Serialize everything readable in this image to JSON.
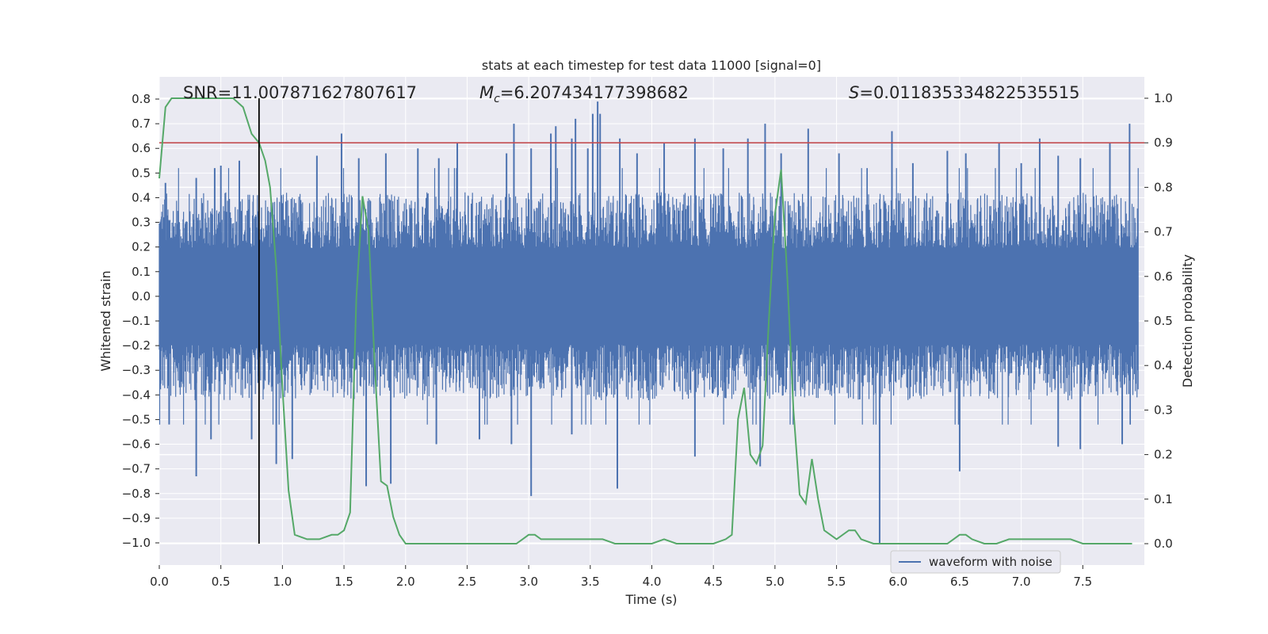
{
  "chart_data": {
    "type": "line",
    "title": "stats at each timestep for test data 11000 [signal=0]",
    "xlabel": "Time (s)",
    "ylabel": "Whitened strain",
    "y2label": "Detection probability",
    "xlim": [
      0.0,
      8.0
    ],
    "ylim": [
      -1.09,
      0.89
    ],
    "y2lim": [
      -0.048,
      1.048
    ],
    "xticks": [
      "0.0",
      "0.5",
      "1.0",
      "1.5",
      "2.0",
      "2.5",
      "3.0",
      "3.5",
      "4.0",
      "4.5",
      "5.0",
      "5.5",
      "6.0",
      "6.5",
      "7.0",
      "7.5"
    ],
    "xtick_values": [
      0.0,
      0.5,
      1.0,
      1.5,
      2.0,
      2.5,
      3.0,
      3.5,
      4.0,
      4.5,
      5.0,
      5.5,
      6.0,
      6.5,
      7.0,
      7.5
    ],
    "yticks": [
      "0.8",
      "0.7",
      "0.6",
      "0.5",
      "0.4",
      "0.3",
      "0.2",
      "0.1",
      "0.0",
      "−0.1",
      "−0.2",
      "−0.3",
      "−0.4",
      "−0.5",
      "−0.6",
      "−0.7",
      "−0.8",
      "−0.9",
      "−1.0"
    ],
    "ytick_values": [
      0.8,
      0.7,
      0.6,
      0.5,
      0.4,
      0.3,
      0.2,
      0.1,
      0.0,
      -0.1,
      -0.2,
      -0.3,
      -0.4,
      -0.5,
      -0.6,
      -0.7,
      -0.8,
      -0.9,
      -1.0
    ],
    "y2ticks": [
      "1.0",
      "0.9",
      "0.8",
      "0.7",
      "0.6",
      "0.5",
      "0.4",
      "0.3",
      "0.2",
      "0.1",
      "0.0"
    ],
    "y2tick_values": [
      1.0,
      0.9,
      0.8,
      0.7,
      0.6,
      0.5,
      0.4,
      0.3,
      0.2,
      0.1,
      0.0
    ],
    "annotations": {
      "snr": "SNR=11.007871627807617",
      "mc_symbol": "M",
      "mc_sub": "c",
      "mc_value": "=6.207434177398682",
      "s_symbol": "S",
      "s_value": "=0.011835334822535515"
    },
    "legend": {
      "label": "waveform with noise",
      "placement": "lower-right"
    },
    "grid": true,
    "threshold_line": {
      "y2": 0.9,
      "color": "#c44e52"
    },
    "vertical_line": {
      "x": 0.81,
      "color": "#000000"
    },
    "series": [
      {
        "name": "waveform with noise",
        "axis": "left",
        "color": "#4c72b0",
        "note_envelope": "dense noise; spikes listed as [x, peak]",
        "base_amplitude": 0.26,
        "spikes_up": [
          [
            0.05,
            0.46
          ],
          [
            0.3,
            0.48
          ],
          [
            0.45,
            0.52
          ],
          [
            0.5,
            0.53
          ],
          [
            0.65,
            0.55
          ],
          [
            1.28,
            0.57
          ],
          [
            1.48,
            0.66
          ],
          [
            1.62,
            0.56
          ],
          [
            1.84,
            0.58
          ],
          [
            2.1,
            0.6
          ],
          [
            2.27,
            0.56
          ],
          [
            2.42,
            0.62
          ],
          [
            2.82,
            0.58
          ],
          [
            2.88,
            0.7
          ],
          [
            3.02,
            0.6
          ],
          [
            3.18,
            0.66
          ],
          [
            3.22,
            0.69
          ],
          [
            3.35,
            0.64
          ],
          [
            3.38,
            0.72
          ],
          [
            3.48,
            0.6
          ],
          [
            3.52,
            0.74
          ],
          [
            3.56,
            0.79
          ],
          [
            3.58,
            0.74
          ],
          [
            3.74,
            0.64
          ],
          [
            3.88,
            0.58
          ],
          [
            4.1,
            0.62
          ],
          [
            4.35,
            0.64
          ],
          [
            4.58,
            0.6
          ],
          [
            4.78,
            0.64
          ],
          [
            4.92,
            0.7
          ],
          [
            5.05,
            0.58
          ],
          [
            5.27,
            0.68
          ],
          [
            5.52,
            0.58
          ],
          [
            5.95,
            0.67
          ],
          [
            6.12,
            0.54
          ],
          [
            6.4,
            0.59
          ],
          [
            6.55,
            0.58
          ],
          [
            6.82,
            0.62
          ],
          [
            7.0,
            0.54
          ],
          [
            7.15,
            0.64
          ],
          [
            7.3,
            0.57
          ],
          [
            7.48,
            0.56
          ],
          [
            7.72,
            0.62
          ],
          [
            7.88,
            0.7
          ]
        ],
        "spikes_down": [
          [
            0.08,
            -0.52
          ],
          [
            0.3,
            -0.73
          ],
          [
            0.42,
            -0.58
          ],
          [
            0.75,
            -0.58
          ],
          [
            0.95,
            -0.68
          ],
          [
            1.08,
            -0.66
          ],
          [
            1.68,
            -0.77
          ],
          [
            1.88,
            -0.76
          ],
          [
            2.25,
            -0.6
          ],
          [
            2.6,
            -0.58
          ],
          [
            2.86,
            -0.6
          ],
          [
            3.02,
            -0.81
          ],
          [
            3.35,
            -0.56
          ],
          [
            3.72,
            -0.78
          ],
          [
            4.35,
            -0.65
          ],
          [
            4.88,
            -0.69
          ],
          [
            5.85,
            -1.0
          ],
          [
            6.5,
            -0.71
          ],
          [
            7.3,
            -0.61
          ],
          [
            7.48,
            -0.62
          ],
          [
            7.82,
            -0.6
          ]
        ]
      },
      {
        "name": "detection probability",
        "axis": "right",
        "color": "#55a868",
        "x": [
          0.0,
          0.05,
          0.1,
          0.2,
          0.3,
          0.4,
          0.5,
          0.6,
          0.68,
          0.75,
          0.81,
          0.86,
          0.9,
          0.95,
          1.0,
          1.05,
          1.1,
          1.2,
          1.3,
          1.4,
          1.45,
          1.5,
          1.55,
          1.6,
          1.65,
          1.7,
          1.75,
          1.8,
          1.85,
          1.9,
          1.95,
          2.0,
          2.1,
          2.3,
          2.5,
          2.7,
          2.9,
          2.95,
          3.0,
          3.05,
          3.1,
          3.2,
          3.3,
          3.4,
          3.5,
          3.6,
          3.7,
          3.8,
          3.9,
          4.0,
          4.1,
          4.2,
          4.3,
          4.4,
          4.5,
          4.6,
          4.65,
          4.7,
          4.75,
          4.8,
          4.85,
          4.9,
          4.95,
          5.0,
          5.05,
          5.1,
          5.15,
          5.2,
          5.25,
          5.3,
          5.35,
          5.4,
          5.45,
          5.5,
          5.6,
          5.65,
          5.7,
          5.8,
          5.9,
          6.0,
          6.1,
          6.2,
          6.3,
          6.4,
          6.45,
          6.5,
          6.55,
          6.6,
          6.7,
          6.8,
          6.9,
          7.0,
          7.1,
          7.2,
          7.25,
          7.3,
          7.4,
          7.5,
          7.6,
          7.7,
          7.8,
          7.9
        ],
        "values": [
          0.82,
          0.98,
          1.0,
          1.0,
          1.0,
          1.0,
          1.0,
          1.0,
          0.98,
          0.92,
          0.9,
          0.86,
          0.8,
          0.62,
          0.35,
          0.12,
          0.02,
          0.01,
          0.01,
          0.02,
          0.02,
          0.03,
          0.07,
          0.55,
          0.78,
          0.7,
          0.4,
          0.14,
          0.13,
          0.06,
          0.02,
          0.0,
          0.0,
          0.0,
          0.0,
          0.0,
          0.0,
          0.01,
          0.02,
          0.02,
          0.01,
          0.01,
          0.01,
          0.01,
          0.01,
          0.01,
          0.0,
          0.0,
          0.0,
          0.0,
          0.01,
          0.0,
          0.0,
          0.0,
          0.0,
          0.01,
          0.02,
          0.28,
          0.35,
          0.2,
          0.18,
          0.22,
          0.5,
          0.74,
          0.84,
          0.6,
          0.3,
          0.11,
          0.09,
          0.19,
          0.1,
          0.03,
          0.02,
          0.01,
          0.03,
          0.03,
          0.01,
          0.0,
          0.0,
          0.0,
          0.0,
          0.0,
          0.0,
          0.0,
          0.01,
          0.02,
          0.02,
          0.01,
          0.0,
          0.0,
          0.01,
          0.01,
          0.01,
          0.01,
          0.01,
          0.01,
          0.01,
          0.0,
          0.0,
          0.0,
          0.0,
          0.0
        ]
      }
    ]
  },
  "colors": {
    "plot_background": "#eaeaf2",
    "grid": "#ffffff",
    "waveform": "#4c72b0",
    "probability": "#55a868",
    "threshold": "#c44e52",
    "marker": "#000000"
  }
}
